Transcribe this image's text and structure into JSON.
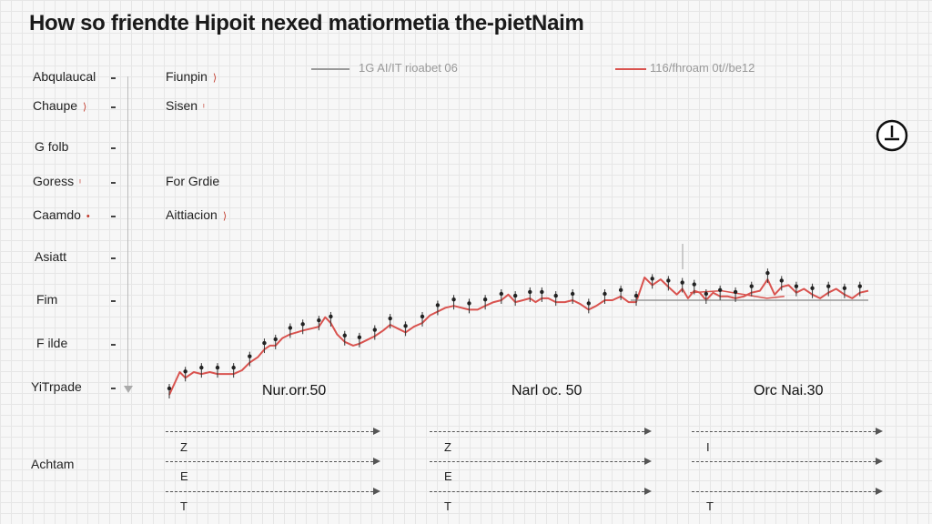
{
  "title": "How so friendte Hipoit nexed matiormetia the-pietNaim",
  "legend": {
    "items": [
      {
        "label": "1G AI/IT rioabet 06",
        "color": "#999999"
      },
      {
        "label": "116/fhroam 0t//be12",
        "color": "#d9534f"
      }
    ]
  },
  "left_labels": [
    {
      "text": "Abqulaucal",
      "mark": ""
    },
    {
      "text": "Chaupe",
      "mark": "⟩"
    },
    {
      "text": "G folb",
      "mark": ""
    },
    {
      "text": "Goress",
      "mark": "ᶦ"
    },
    {
      "text": "Caamdo",
      "mark": "•"
    },
    {
      "text": "Asiatt",
      "mark": ""
    },
    {
      "text": "Fim",
      "mark": ""
    },
    {
      "text": "F ilde",
      "mark": ""
    },
    {
      "text": "YiTrpade",
      "mark": ""
    }
  ],
  "mid_labels": [
    {
      "text": "Fiunpin",
      "mark": "⟩"
    },
    {
      "text": "Sisen",
      "mark": "ᶦ"
    },
    {
      "text": "For Grdie",
      "mark": ""
    },
    {
      "text": "Aittiacion",
      "mark": "⟩"
    }
  ],
  "annotations": [
    "Nur.orr.50",
    "Narl oc. 50",
    "Orc Nai.30"
  ],
  "bottom": {
    "label": "Achtam",
    "groups": [
      {
        "letters": [
          "Z",
          "E",
          "T"
        ]
      },
      {
        "letters": [
          "Z",
          "E",
          "T"
        ]
      },
      {
        "letters": [
          "I",
          "",
          "T"
        ]
      }
    ]
  },
  "clock_icon": "clock-icon",
  "chart_data": {
    "type": "line",
    "title": "How so friendte Hipoit nexed matiormetia the-pietNaim",
    "xlabel": "",
    "ylabel": "",
    "ylim": [
      0,
      100
    ],
    "xlim": [
      0,
      100
    ],
    "grid": true,
    "legend": "top",
    "series": [
      {
        "name": "116/fhroam 0t//be12",
        "color": "#d9534f",
        "x": [
          0,
          1.5,
          2.3,
          3.5,
          4.6,
          5.8,
          6.9,
          8.1,
          9.2,
          10.4,
          11.5,
          12.7,
          13.6,
          14.4,
          15.2,
          16.2,
          17.3,
          18.2,
          19.1,
          20.3,
          21.4,
          22.3,
          23.1,
          24.0,
          25.1,
          26.3,
          27.2,
          28.3,
          29.4,
          30.6,
          31.6,
          32.7,
          33.8,
          35.0,
          36.2,
          37.3,
          38.4,
          39.5,
          40.7,
          41.8,
          42.9,
          44.1,
          45.2,
          46.4,
          47.5,
          48.5,
          49.5,
          50.6,
          51.6,
          52.4,
          53.3,
          54.2,
          55.3,
          56.6,
          57.7,
          58.8,
          60.0,
          61.1,
          62.3,
          63.4,
          64.6,
          65.7,
          66.8,
          68.0,
          69.1,
          70.3,
          71.4,
          72.6,
          73.4,
          74.2,
          75.1,
          75.9,
          76.8,
          77.8,
          78.8,
          79.9,
          81.0,
          82.2,
          83.3,
          84.5,
          85.6,
          86.6,
          87.6,
          88.6,
          89.7,
          90.8,
          92.0,
          93.1,
          94.3,
          95.4,
          96.6,
          97.7,
          98.8,
          100.0
        ],
        "y": [
          0,
          12,
          9,
          12,
          11,
          12,
          11,
          11,
          11,
          13,
          17,
          20,
          24,
          26,
          26,
          30,
          32,
          33,
          34,
          35,
          36,
          41,
          38,
          32,
          28,
          26,
          27,
          29,
          31,
          34,
          37,
          35,
          33,
          36,
          38,
          42,
          44,
          46,
          47,
          46,
          45,
          45,
          47,
          49,
          50,
          53,
          49,
          50,
          51,
          49,
          51,
          51,
          49,
          49,
          50,
          48,
          45,
          47,
          50,
          50,
          52,
          49,
          49,
          62,
          58,
          61,
          57,
          53,
          56,
          51,
          55,
          54,
          50,
          54,
          52,
          52,
          51,
          52,
          54,
          55,
          61,
          53,
          57,
          58,
          54,
          56,
          53,
          51,
          54,
          56,
          53,
          51,
          54,
          55
        ]
      },
      {
        "name": "1G AI/IT rioabet 06",
        "color": "#999999",
        "x": [
          66.0,
          100.0
        ],
        "y": [
          50,
          50
        ]
      },
      {
        "name": "",
        "color": "#d9534f",
        "x": [
          74.5,
          79.0,
          85.5,
          88.0
        ],
        "y": [
          54,
          55,
          51,
          52
        ]
      }
    ]
  }
}
